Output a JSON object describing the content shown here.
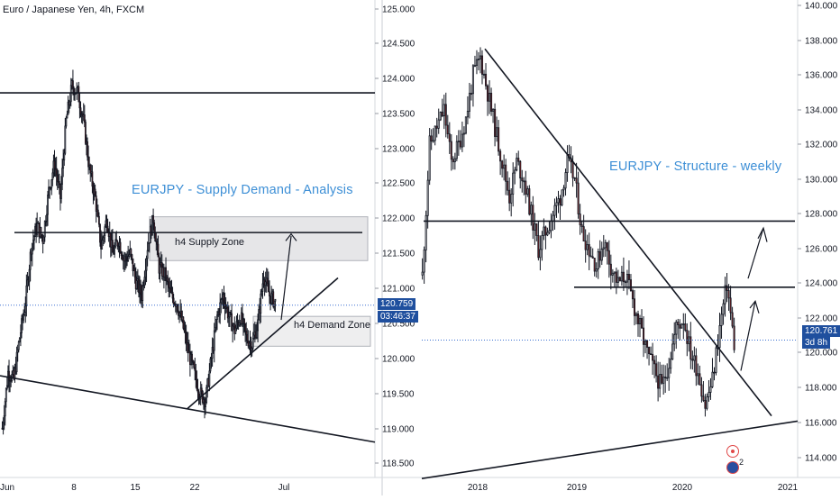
{
  "chart_data": [
    {
      "type": "candlestick",
      "title": "Euro / Japanese Yen, 4h, FXCM",
      "headline": "EURJPY - Supply Demand - Analysis",
      "y_ticks": [
        "125.000",
        "124.500",
        "124.000",
        "123.500",
        "123.000",
        "122.500",
        "122.000",
        "121.500",
        "121.000",
        "120.500",
        "120.000",
        "119.500",
        "119.000",
        "118.500"
      ],
      "x_ticks": [
        "Jun",
        "8",
        "15",
        "22",
        "Jul"
      ],
      "ylim": [
        118.35,
        125.1
      ],
      "current_price": "120.759",
      "countdown": "03:46:37",
      "zones": [
        {
          "label": "h4 Supply Zone",
          "top": 122.0,
          "bottom": 121.45
        },
        {
          "label": "h4 Demand Zone",
          "top": 120.6,
          "bottom": 120.25
        }
      ],
      "close_path": [
        119.0,
        119.8,
        119.7,
        120.3,
        120.8,
        121.6,
        121.9,
        121.7,
        122.4,
        122.8,
        122.3,
        123.4,
        123.9,
        123.8,
        123.4,
        122.7,
        122.3,
        121.6,
        122.0,
        121.5,
        121.7,
        121.4,
        121.5,
        121.1,
        120.9,
        121.6,
        122.0,
        121.3,
        121.2,
        120.9,
        120.8,
        120.5,
        120.1,
        119.8,
        119.5,
        119.4,
        120.0,
        120.6,
        120.9,
        120.6,
        120.4,
        120.6,
        120.3,
        120.2,
        120.5,
        121.2,
        120.9,
        120.8
      ]
    },
    {
      "type": "candlestick",
      "headline": "EURJPY - Structure - weekly",
      "y_ticks": [
        "140.000",
        "138.000",
        "136.000",
        "134.000",
        "132.000",
        "130.000",
        "128.000",
        "126.000",
        "124.000",
        "122.000",
        "120.000",
        "118.000",
        "116.000",
        "114.000"
      ],
      "x_ticks": [
        "2018",
        "2019",
        "2020",
        "2021"
      ],
      "ylim": [
        112.2,
        140.4
      ],
      "current_price": "120.761",
      "countdown": "3d 8h",
      "close_path": [
        124.5,
        132.0,
        133.0,
        134.0,
        131.0,
        132.0,
        133.5,
        136.0,
        137.0,
        135.0,
        133.0,
        131.0,
        129.0,
        131.0,
        130.0,
        128.0,
        126.0,
        127.0,
        128.0,
        129.0,
        131.0,
        130.0,
        127.0,
        126.0,
        125.0,
        126.5,
        125.0,
        124.0,
        124.5,
        123.0,
        121.5,
        120.0,
        119.0,
        118.0,
        119.5,
        121.5,
        122.0,
        120.0,
        119.0,
        117.0,
        118.5,
        121.5,
        124.0,
        120.5
      ]
    }
  ]
}
